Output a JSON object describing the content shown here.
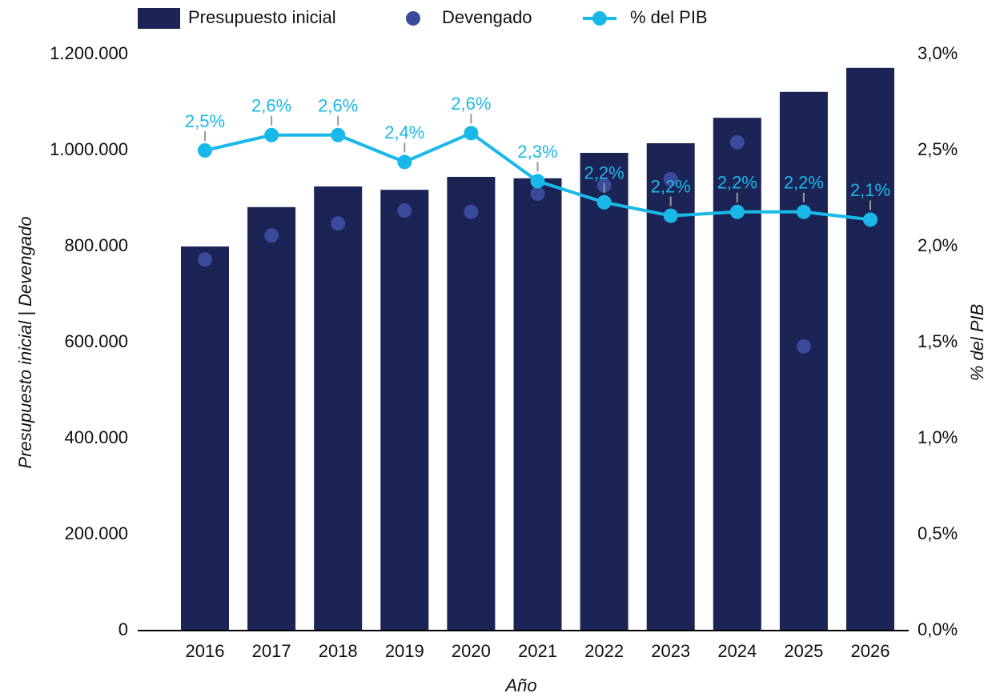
{
  "chart_data": {
    "type": "bar",
    "categories": [
      "2016",
      "2017",
      "2018",
      "2019",
      "2020",
      "2021",
      "2022",
      "2023",
      "2024",
      "2025",
      "2026"
    ],
    "series": [
      {
        "name": "Presupuesto inicial",
        "type": "bar",
        "color": "#1c2355",
        "values": [
          800000,
          882000,
          925000,
          918000,
          945000,
          942000,
          995000,
          1015000,
          1068000,
          1122000,
          1172000
        ]
      },
      {
        "name": "Devengado",
        "type": "scatter",
        "color": "#3a4a9c",
        "values": [
          773000,
          823000,
          848000,
          875000,
          872000,
          910000,
          927000,
          940000,
          1017000,
          592000,
          null
        ]
      },
      {
        "name": "% del PIB",
        "type": "line",
        "axis": "y2",
        "color": "#1ab8e8",
        "values": [
          2.5,
          2.58,
          2.58,
          2.44,
          2.59,
          2.34,
          2.23,
          2.16,
          2.18,
          2.18,
          2.14
        ],
        "value_labels": [
          "2,5%",
          "2,6%",
          "2,6%",
          "2,4%",
          "2,6%",
          "2,3%",
          "2,2%",
          "2,2%",
          "2,2%",
          "2,2%",
          "2,1%"
        ]
      }
    ],
    "xlabel": "Año",
    "ylabel": "Presupuesto inicial | Devengado",
    "y2label": "% del PIB",
    "ylim": [
      0,
      1200000
    ],
    "yticks": [
      0,
      {
        "value": 200000,
        "label": "200.000"
      },
      {
        "value": 400000,
        "label": "400.000"
      },
      {
        "value": 600000,
        "label": "600.000"
      },
      {
        "value": 800000,
        "label": "800.000"
      },
      {
        "value": 1000000,
        "label": "1.000.000"
      },
      {
        "value": 1200000,
        "label": "1.200.000"
      }
    ],
    "y2lim": [
      0,
      3
    ],
    "y2ticks": [
      {
        "value": 0,
        "label": "0,0%"
      },
      {
        "value": 0.5,
        "label": "0,5%"
      },
      {
        "value": 1,
        "label": "1,0%"
      },
      {
        "value": 1.5,
        "label": "1,5%"
      },
      {
        "value": 2,
        "label": "2,0%"
      },
      {
        "value": 2.5,
        "label": "2,5%"
      },
      {
        "value": 3,
        "label": "3,0%"
      }
    ],
    "grid": false,
    "legend": "top"
  }
}
